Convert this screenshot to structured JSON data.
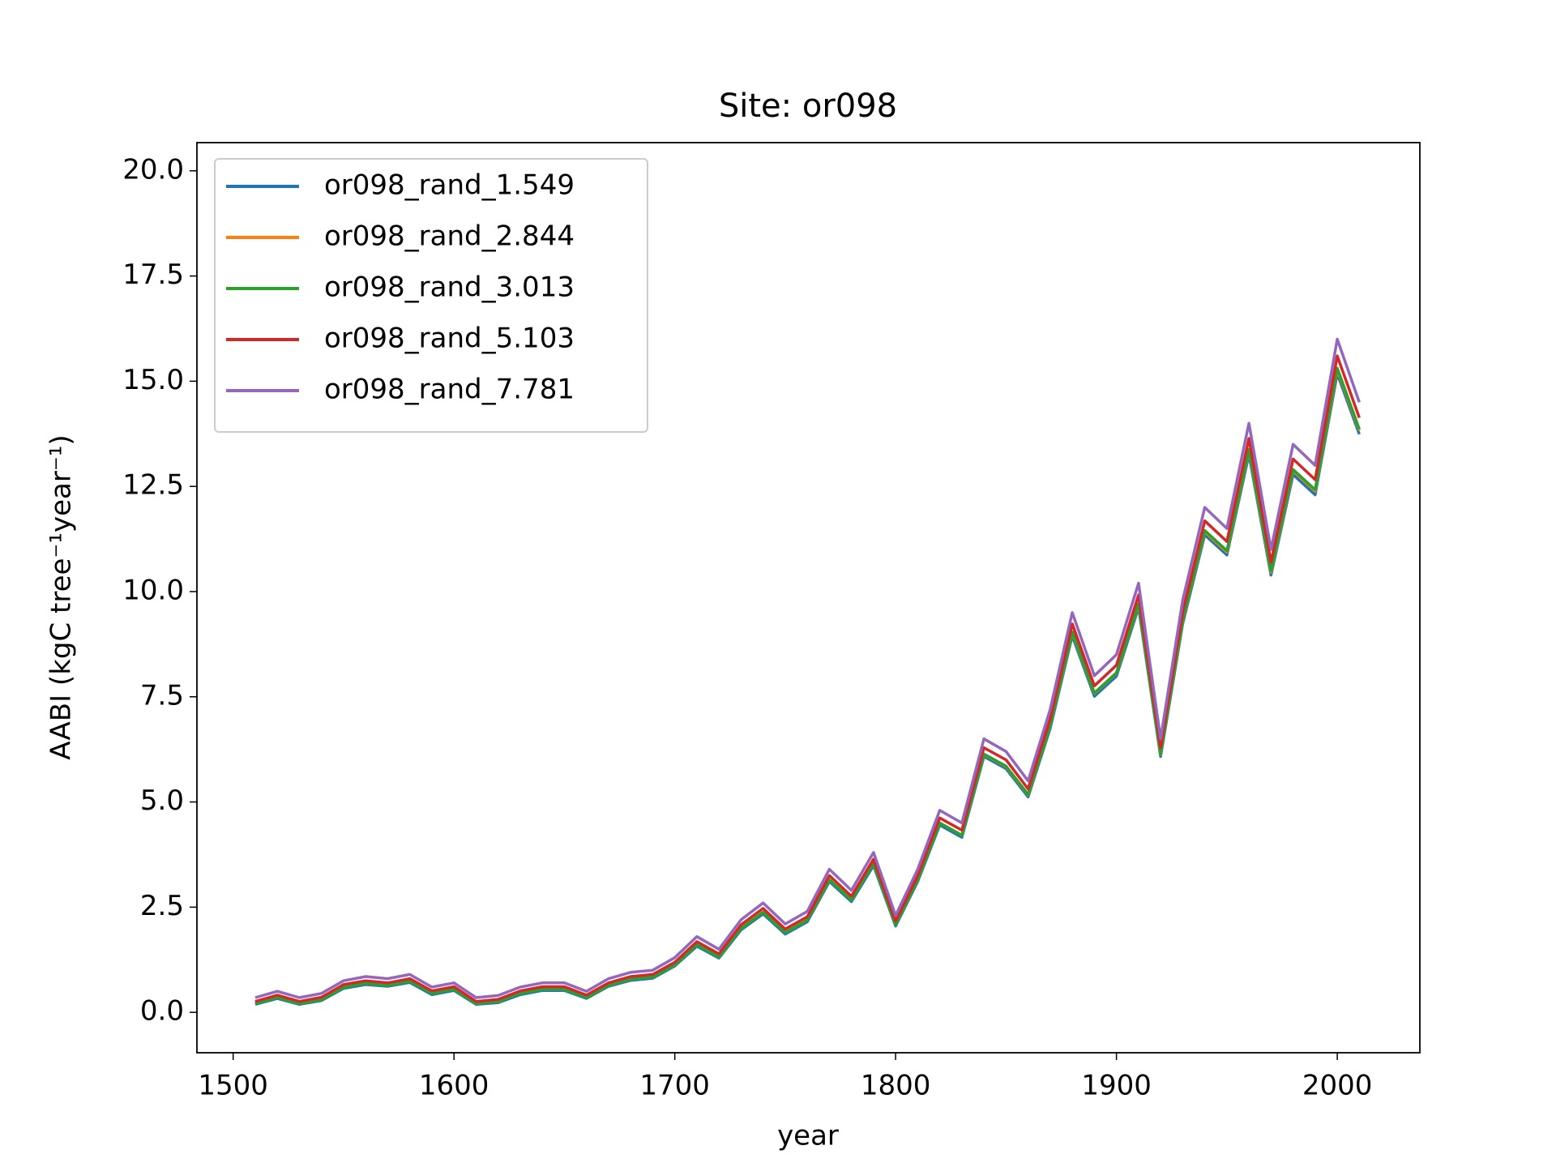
{
  "chart_data": {
    "type": "line",
    "title": "Site: or098",
    "x_label": "year",
    "y_label": "AABI (kgC tree⁻¹year⁻¹)",
    "x": [
      1510,
      1520,
      1530,
      1540,
      1550,
      1560,
      1570,
      1580,
      1590,
      1600,
      1610,
      1620,
      1630,
      1640,
      1650,
      1660,
      1670,
      1680,
      1690,
      1700,
      1710,
      1720,
      1730,
      1740,
      1750,
      1760,
      1770,
      1780,
      1790,
      1800,
      1810,
      1820,
      1830,
      1840,
      1850,
      1860,
      1870,
      1880,
      1890,
      1900,
      1910,
      1920,
      1930,
      1940,
      1950,
      1960,
      1970,
      1980,
      1990,
      2000,
      2010
    ],
    "series": [
      {
        "name": "or098_rand_1.549",
        "color": "#1f77b4",
        "values": [
          0.19,
          0.33,
          0.19,
          0.28,
          0.57,
          0.66,
          0.62,
          0.71,
          0.42,
          0.52,
          0.19,
          0.23,
          0.42,
          0.52,
          0.52,
          0.33,
          0.62,
          0.76,
          0.81,
          1.1,
          1.57,
          1.29,
          1.96,
          2.34,
          1.86,
          2.15,
          3.11,
          2.63,
          3.49,
          2.05,
          3.11,
          4.45,
          4.16,
          6.08,
          5.79,
          5.12,
          6.75,
          8.95,
          7.51,
          7.99,
          9.62,
          6.08,
          9.24,
          11.35,
          10.87,
          13.26,
          10.39,
          12.78,
          12.3,
          15.18,
          13.74
        ]
      },
      {
        "name": "or098_rand_2.844",
        "color": "#ff7f0e",
        "values": [
          0.22,
          0.36,
          0.22,
          0.31,
          0.6,
          0.7,
          0.65,
          0.75,
          0.46,
          0.55,
          0.22,
          0.26,
          0.46,
          0.55,
          0.55,
          0.36,
          0.65,
          0.79,
          0.84,
          1.13,
          1.61,
          1.32,
          2.0,
          2.38,
          1.9,
          2.19,
          3.15,
          2.67,
          3.54,
          2.09,
          3.15,
          4.5,
          4.21,
          6.13,
          5.84,
          5.17,
          6.81,
          9.02,
          7.58,
          8.06,
          9.69,
          6.13,
          9.31,
          11.42,
          10.94,
          13.35,
          10.46,
          12.87,
          12.39,
          15.27,
          13.83
        ]
      },
      {
        "name": "or098_rand_3.013",
        "color": "#2ca02c",
        "values": [
          0.21,
          0.35,
          0.21,
          0.3,
          0.59,
          0.69,
          0.64,
          0.74,
          0.45,
          0.55,
          0.21,
          0.26,
          0.45,
          0.55,
          0.55,
          0.35,
          0.64,
          0.79,
          0.84,
          1.12,
          1.61,
          1.32,
          1.99,
          2.38,
          1.9,
          2.19,
          3.15,
          2.67,
          3.54,
          2.09,
          3.15,
          4.5,
          4.21,
          6.14,
          5.85,
          5.18,
          6.82,
          9.04,
          7.59,
          8.07,
          9.71,
          6.14,
          9.33,
          11.45,
          10.97,
          13.38,
          10.49,
          12.9,
          12.42,
          15.31,
          13.86
        ]
      },
      {
        "name": "or098_rand_5.103",
        "color": "#d62728",
        "values": [
          0.26,
          0.41,
          0.26,
          0.36,
          0.66,
          0.75,
          0.7,
          0.8,
          0.51,
          0.61,
          0.26,
          0.31,
          0.51,
          0.61,
          0.61,
          0.41,
          0.7,
          0.85,
          0.9,
          1.19,
          1.68,
          1.39,
          2.08,
          2.47,
          1.98,
          2.27,
          3.25,
          2.76,
          3.64,
          2.17,
          3.25,
          4.62,
          4.33,
          6.29,
          6.0,
          5.31,
          6.98,
          9.23,
          7.76,
          8.25,
          9.92,
          6.29,
          9.52,
          11.68,
          11.19,
          13.64,
          10.7,
          13.15,
          12.66,
          15.6,
          14.13
        ]
      },
      {
        "name": "or098_rand_7.781",
        "color": "#9467bd",
        "values": [
          0.35,
          0.5,
          0.35,
          0.45,
          0.75,
          0.85,
          0.8,
          0.9,
          0.6,
          0.7,
          0.35,
          0.4,
          0.6,
          0.7,
          0.7,
          0.5,
          0.8,
          0.95,
          1.0,
          1.3,
          1.8,
          1.5,
          2.2,
          2.6,
          2.1,
          2.4,
          3.4,
          2.9,
          3.8,
          2.3,
          3.4,
          4.8,
          4.5,
          6.5,
          6.2,
          5.5,
          7.2,
          9.5,
          8.0,
          8.5,
          10.2,
          6.5,
          9.8,
          12.0,
          11.5,
          14.0,
          11.0,
          13.5,
          13.0,
          16.0,
          14.5
        ]
      }
    ],
    "xlim": [
      1483.6,
      2037.4
    ],
    "xticks": [
      1500,
      1600,
      1700,
      1800,
      1900,
      2000
    ],
    "ylim": [
      -0.96,
      20.67
    ],
    "yticks": [
      {
        "value": 0,
        "label": "0.0"
      },
      {
        "value": 2.5,
        "label": "2.5"
      },
      {
        "value": 5,
        "label": "5.0"
      },
      {
        "value": 7.5,
        "label": "7.5"
      },
      {
        "value": 10,
        "label": "10.0"
      },
      {
        "value": 12.5,
        "label": "12.5"
      },
      {
        "value": 15,
        "label": "15.0"
      },
      {
        "value": 17.5,
        "label": "17.5"
      },
      {
        "value": 20,
        "label": "20.0"
      }
    ],
    "legend": "upper left"
  }
}
